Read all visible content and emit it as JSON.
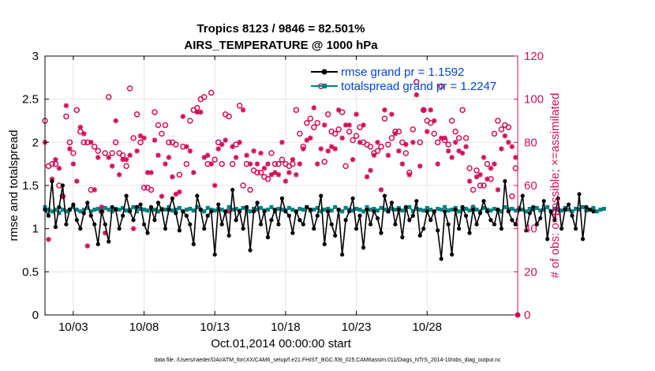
{
  "chart_data": {
    "type": "line",
    "title_line1": "Tropics 8123 / 9846 = 82.501%",
    "title_line2": "AIRS_TEMPERATURE @ 1000 hPa",
    "xlabel": "Oct.01,2014 00:00:00 start",
    "ylabel_left": "rmse and totalspread",
    "ylabel_right": "# of obs: o=possible; ×=assimilated",
    "footnote": "data file: /Users/raeder/DAI/ATM_forcXX/CAM6_setup/f.e21.FHIST_BGC.f09_025.CAM6assim.011/Diags_NTrS_2014-10/obs_diag_output.nc",
    "xlim": [
      1,
      34.4
    ],
    "ylim_left": [
      0,
      3
    ],
    "ylim_right": [
      0,
      120
    ],
    "xticks": [
      3,
      8,
      13,
      18,
      23,
      28
    ],
    "xtick_labels": [
      "10/03",
      "10/08",
      "10/13",
      "10/18",
      "10/23",
      "10/28"
    ],
    "yticks_left": [
      0,
      0.5,
      1,
      1.5,
      2,
      2.5,
      3
    ],
    "ytick_labels_left": [
      "0",
      "0.5",
      "1",
      "1.5",
      "2",
      "2.5",
      "3"
    ],
    "yticks_right": [
      0,
      20,
      40,
      60,
      80,
      100,
      120
    ],
    "ytick_labels_right": [
      "0",
      "20",
      "40",
      "60",
      "80",
      "100",
      "120"
    ],
    "legend": [
      {
        "label": "rmse grand pr = 1.1592",
        "color": "#000000"
      },
      {
        "label": "totalspread grand pr = 1.2247",
        "color": "#008080"
      }
    ],
    "colors": {
      "rmse": "#000000",
      "spread": "#008080",
      "obs": "#d0105a",
      "grid": "#e6e6e6",
      "legend_text": "#0044dd"
    },
    "x_start": 1.0,
    "x_step": 0.25,
    "series": [
      {
        "name": "rmse",
        "values": [
          1.22,
          1.15,
          1.55,
          1.02,
          1.25,
          1.5,
          1.05,
          1.22,
          1.28,
          1.1,
          1.0,
          1.18,
          1.3,
          1.15,
          1.05,
          0.82,
          1.2,
          1.05,
          0.85,
          1.25,
          1.22,
          1.0,
          1.15,
          1.38,
          1.2,
          1.1,
          1.25,
          1.28,
          1.05,
          0.95,
          1.25,
          1.1,
          1.3,
          1.22,
          1.0,
          1.22,
          1.35,
          1.18,
          0.98,
          1.2,
          1.15,
          1.05,
          0.82,
          1.38,
          1.22,
          1.0,
          1.15,
          1.2,
          0.7,
          1.28,
          1.05,
          1.2,
          0.92,
          1.45,
          1.1,
          1.2,
          1.0,
          1.25,
          0.75,
          1.2,
          1.3,
          1.05,
          1.2,
          0.9,
          1.1,
          1.22,
          1.05,
          1.35,
          1.2,
          1.15,
          0.95,
          1.2,
          1.1,
          1.05,
          1.25,
          1.22,
          1.0,
          1.15,
          1.38,
          0.82,
          1.2,
          1.05,
          0.92,
          1.22,
          0.7,
          1.1,
          1.2,
          1.35,
          1.0,
          1.15,
          0.78,
          1.22,
          1.05,
          1.2,
          1.12,
          0.95,
          1.38,
          1.2,
          1.3,
          1.05,
          1.22,
          0.9,
          1.25,
          1.1,
          1.15,
          1.32,
          0.92,
          1.0,
          1.2,
          1.1,
          1.2,
          0.98,
          0.65,
          1.2,
          1.05,
          0.7,
          1.22,
          1.0,
          1.25,
          1.15,
          0.95,
          1.22,
          1.05,
          1.18,
          1.32,
          1.2,
          1.1,
          1.05,
          1.22,
          1.0,
          1.55,
          1.2,
          1.1,
          1.05,
          1.22,
          1.38,
          0.98,
          1.18,
          1.25,
          1.05,
          1.12,
          1.32,
          0.88,
          1.2,
          1.1,
          1.35,
          1.0,
          1.22,
          1.28,
          1.15,
          1.0,
          1.4,
          0.88,
          1.25,
          1.22,
          1.2
        ]
      },
      {
        "name": "totalspread",
        "values": [
          1.25,
          1.22,
          1.2,
          1.22,
          1.18,
          1.22,
          1.2,
          1.22,
          1.25,
          1.22,
          1.2,
          1.22,
          1.24,
          1.2,
          1.22,
          1.23,
          1.21,
          1.24,
          1.22,
          1.2,
          1.23,
          1.22,
          1.24,
          1.21,
          1.22,
          1.25,
          1.2,
          1.23,
          1.22,
          1.21,
          1.24,
          1.22,
          1.2,
          1.23,
          1.22,
          1.25,
          1.21,
          1.22,
          1.24,
          1.2,
          1.22,
          1.23,
          1.21,
          1.25,
          1.22,
          1.2,
          1.24,
          1.22,
          1.21,
          1.23,
          1.22,
          1.2,
          1.25,
          1.22,
          1.23,
          1.21,
          1.24,
          1.22,
          1.2,
          1.23,
          1.22,
          1.24,
          1.21,
          1.22,
          1.25,
          1.2,
          1.23,
          1.22,
          1.21,
          1.24,
          1.22,
          1.2,
          1.23,
          1.22,
          1.25,
          1.21,
          1.22,
          1.24,
          1.2,
          1.22,
          1.23,
          1.21,
          1.25,
          1.22,
          1.2,
          1.24,
          1.22,
          1.21,
          1.23,
          1.22,
          1.2,
          1.25,
          1.22,
          1.23,
          1.21,
          1.24,
          1.22,
          1.2,
          1.23,
          1.22,
          1.24,
          1.21,
          1.22,
          1.25,
          1.2,
          1.23,
          1.22,
          1.21,
          1.24,
          1.22,
          1.2,
          1.23,
          1.22,
          1.25,
          1.21,
          1.22,
          1.24,
          1.2,
          1.22,
          1.23,
          1.21,
          1.25,
          1.22,
          1.2,
          1.24,
          1.22,
          1.21,
          1.23,
          1.22,
          1.2,
          1.25,
          1.22,
          1.23,
          1.21,
          1.24,
          1.22,
          1.2,
          1.23,
          1.22,
          1.24,
          1.21,
          1.22,
          1.25,
          1.2,
          1.23,
          1.22,
          1.21,
          1.24,
          1.22,
          1.2,
          1.23,
          1.22,
          1.25,
          1.21,
          1.22,
          1.24,
          1.2,
          1.22,
          1.23
        ]
      },
      {
        "name": "obs_possible",
        "values": [
          90,
          69,
          70,
          70,
          60,
          55,
          92,
          80,
          75,
          95,
          85,
          80,
          80,
          58,
          78,
          76,
          48,
          75,
          101,
          75,
          80,
          75,
          74,
          69,
          105,
          82,
          93,
          80,
          59,
          59,
          58,
          94,
          88,
          84,
          88,
          80,
          80,
          79,
          65,
          78,
          70,
          90,
          95,
          96,
          100,
          101,
          70,
          103,
          72,
          80,
          70,
          93,
          92,
          70,
          79,
          97,
          60,
          70,
          58,
          67,
          66,
          66,
          64,
          63,
          75,
          70,
          70,
          72,
          70,
          69,
          70,
          95,
          84,
          78,
          89,
          91,
          87,
          89,
          106,
          71,
          93,
          85,
          84,
          86,
          94,
          69,
          85,
          81,
          83,
          87,
          80,
          79,
          78,
          75,
          76,
          78,
          91,
          79,
          82,
          85,
          85,
          80,
          75,
          66,
          86,
          108,
          80,
          95,
          90,
          89,
          84,
          80,
          106,
          81,
          79,
          90,
          85,
          82,
          95,
          82,
          68,
          58,
          67,
          60,
          60,
          70,
          63,
          84,
          90,
          86,
          88,
          87,
          55,
          68,
          70,
          74,
          67,
          68,
          95,
          50,
          70,
          47,
          72,
          69,
          65,
          67,
          72,
          78,
          52,
          47,
          58,
          80,
          72,
          72,
          78,
          77,
          75,
          53,
          79
        ]
      },
      {
        "name": "obs_assimilated",
        "values": [
          80,
          35,
          63,
          72,
          68,
          55,
          97,
          77,
          70,
          62,
          87,
          84,
          32,
          80,
          58,
          73,
          50,
          38,
          73,
          69,
          90,
          65,
          72,
          72,
          74,
          40,
          76,
          83,
          82,
          66,
          66,
          81,
          74,
          55,
          70,
          73,
          64,
          56,
          57,
          92,
          78,
          76,
          66,
          94,
          94,
          73,
          74,
          70,
          60,
          77,
          79,
          81,
          48,
          78,
          73,
          80,
          95,
          74,
          70,
          76,
          70,
          75,
          68,
          70,
          65,
          66,
          65,
          80,
          62,
          66,
          72,
          65,
          70,
          77,
          81,
          82,
          96,
          70,
          77,
          88,
          76,
          78,
          77,
          95,
          82,
          88,
          88,
          72,
          93,
          80,
          88,
          64,
          67,
          74,
          80,
          58,
          95,
          74,
          93,
          84,
          76,
          70,
          79,
          65,
          80,
          102,
          69,
          95,
          85,
          95,
          90,
          70,
          82,
          82,
          76,
          73,
          80,
          76,
          75,
          78,
          62,
          50,
          64,
          65,
          73,
          63,
          68,
          70,
          58,
          77,
          83,
          80,
          78,
          73,
          68,
          72,
          60,
          58,
          88,
          46,
          65,
          72,
          75,
          70,
          68,
          90,
          79,
          88,
          82,
          40,
          55,
          36,
          80,
          84,
          75,
          77,
          75,
          65,
          75
        ]
      }
    ]
  }
}
